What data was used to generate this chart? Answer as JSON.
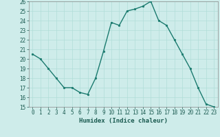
{
  "x": [
    0,
    1,
    2,
    3,
    4,
    5,
    6,
    7,
    8,
    9,
    10,
    11,
    12,
    13,
    14,
    15,
    16,
    17,
    18,
    19,
    20,
    21,
    22,
    23
  ],
  "y": [
    20.5,
    20.0,
    19.0,
    18.0,
    17.0,
    17.0,
    16.5,
    16.3,
    18.0,
    20.8,
    23.8,
    23.5,
    25.0,
    25.2,
    25.5,
    26.0,
    24.0,
    23.5,
    22.0,
    20.5,
    19.0,
    17.0,
    15.3,
    15.0
  ],
  "line_color": "#1a7a6e",
  "marker": "o",
  "marker_size": 1.8,
  "linewidth": 1.0,
  "bg_color": "#ceecea",
  "grid_color": "#b0ddd8",
  "xlabel": "Humidex (Indice chaleur)",
  "ylim": [
    15,
    26
  ],
  "xlim": [
    -0.5,
    23.5
  ],
  "yticks": [
    15,
    16,
    17,
    18,
    19,
    20,
    21,
    22,
    23,
    24,
    25,
    26
  ],
  "xticks": [
    0,
    1,
    2,
    3,
    4,
    5,
    6,
    7,
    8,
    9,
    10,
    11,
    12,
    13,
    14,
    15,
    16,
    17,
    18,
    19,
    20,
    21,
    22,
    23
  ],
  "tick_fontsize": 5.5,
  "xlabel_fontsize": 6.5,
  "spine_color": "#888888"
}
